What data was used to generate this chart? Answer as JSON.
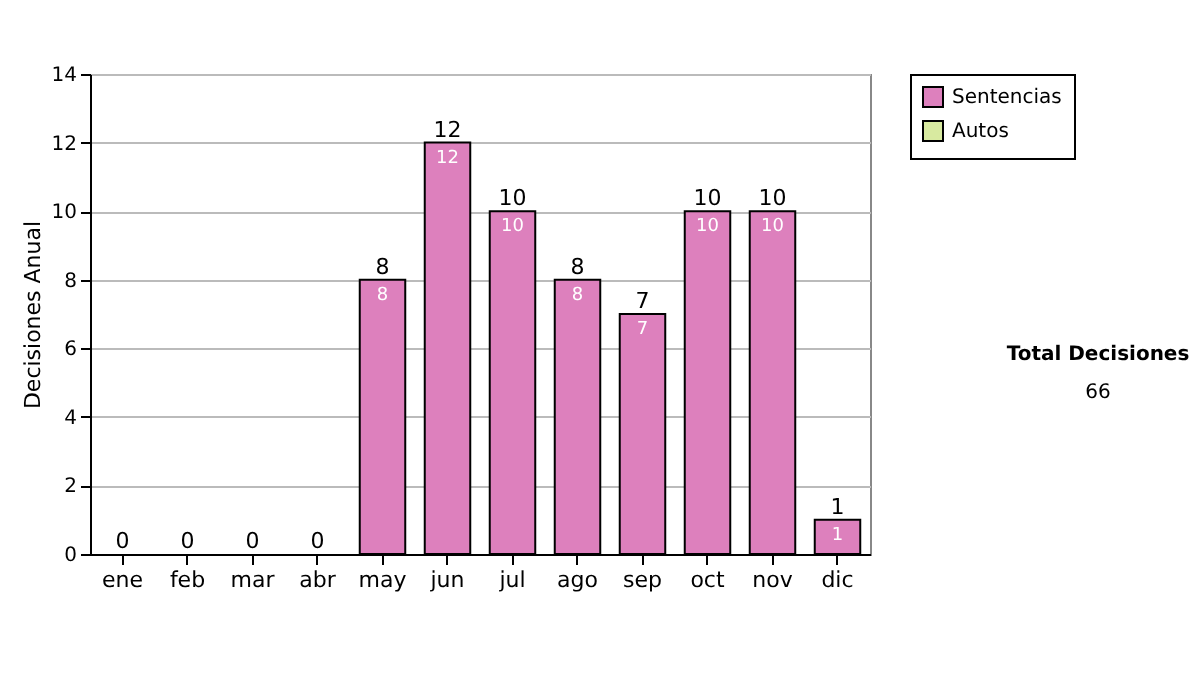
{
  "chart_data": {
    "type": "bar",
    "ylabel": "Decisiones Anual",
    "categories": [
      "ene",
      "feb",
      "mar",
      "abr",
      "may",
      "jun",
      "jul",
      "ago",
      "sep",
      "oct",
      "nov",
      "dic"
    ],
    "series": [
      {
        "name": "Sentencias",
        "color": "#dd80bd",
        "values": [
          0,
          0,
          0,
          0,
          8,
          12,
          10,
          8,
          7,
          10,
          10,
          1
        ],
        "value_labels": [
          null,
          null,
          null,
          null,
          "8",
          "12",
          "10",
          "8",
          "7",
          "10",
          "10",
          "1"
        ]
      },
      {
        "name": "Autos",
        "color": "#d8eaa0",
        "values": [
          0,
          0,
          0,
          0,
          0,
          0,
          0,
          0,
          0,
          0,
          0,
          0
        ]
      }
    ],
    "stacked": true,
    "totals": [
      "0",
      "0",
      "0",
      "0",
      "8",
      "12",
      "10",
      "8",
      "7",
      "10",
      "10",
      "1"
    ],
    "ylim": [
      0,
      14
    ],
    "yticks": [
      0,
      2,
      4,
      6,
      8,
      10,
      12,
      14
    ],
    "grid": "y",
    "legend": "right",
    "annotations": [
      "Total Decisiones",
      "66"
    ]
  }
}
